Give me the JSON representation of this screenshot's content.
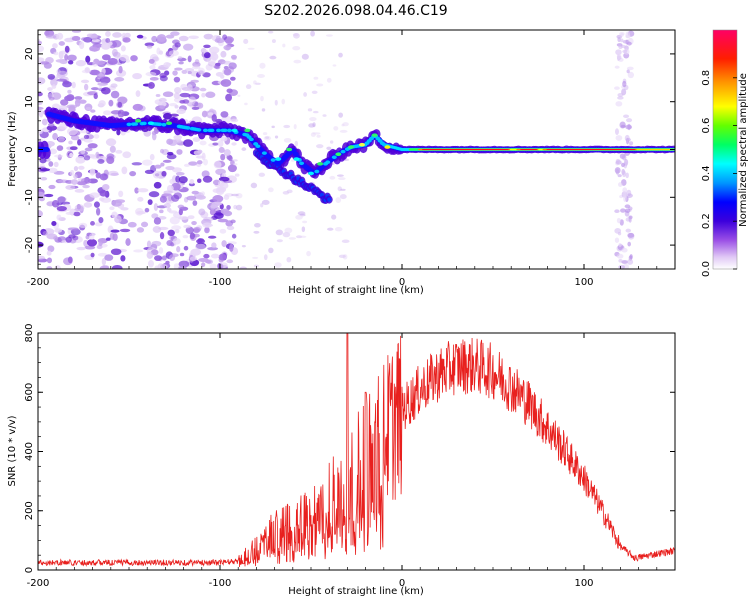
{
  "title": "S202.2026.098.04.46.C19",
  "chart_data": [
    {
      "type": "heatmap",
      "xlabel": "Height of straight line (km)",
      "ylabel": "Frequency (Hz)",
      "xlim": [
        -200,
        150
      ],
      "ylim": [
        -25,
        25
      ],
      "xticks": [
        -200,
        -100,
        0,
        100
      ],
      "yticks": [
        -20,
        -10,
        0,
        10,
        20
      ],
      "colorbar": {
        "label": "Normalized spectral amplitude",
        "range": [
          0,
          1
        ],
        "ticks": [
          0.0,
          0.2,
          0.4,
          0.6,
          0.8
        ],
        "colors": [
          "#ffffff",
          "#b47ae6",
          "#5a00e6",
          "#0000ff",
          "#00a0ff",
          "#00ffff",
          "#00ff00",
          "#ffff00",
          "#ff8000",
          "#ff0000",
          "#ff0080"
        ]
      },
      "ridge": [
        [
          -195,
          7.5
        ],
        [
          -180,
          6
        ],
        [
          -160,
          5
        ],
        [
          -140,
          5.5
        ],
        [
          -125,
          5
        ],
        [
          -110,
          4
        ],
        [
          -95,
          4
        ],
        [
          -85,
          3
        ],
        [
          -75,
          -1
        ],
        [
          -68,
          -3
        ],
        [
          -60,
          0
        ],
        [
          -55,
          -3
        ],
        [
          -48,
          -5
        ],
        [
          -42,
          -3
        ],
        [
          -35,
          -1
        ],
        [
          -28,
          0.5
        ],
        [
          -20,
          1
        ],
        [
          -15,
          3
        ],
        [
          -10,
          1
        ],
        [
          0,
          0
        ],
        [
          30,
          0
        ],
        [
          60,
          0
        ],
        [
          100,
          0
        ],
        [
          150,
          0
        ]
      ]
    },
    {
      "type": "line",
      "xlabel": "Height of straight line (km)",
      "ylabel": "SNR (10 * v/v)",
      "xlim": [
        -200,
        150
      ],
      "ylim": [
        0,
        800
      ],
      "xticks": [
        -200,
        -100,
        0,
        100
      ],
      "yticks": [
        0,
        200,
        400,
        600,
        800
      ],
      "color": "#e8201e",
      "envelope": [
        [
          -200,
          25
        ],
        [
          -150,
          25
        ],
        [
          -100,
          25
        ],
        [
          -90,
          30
        ],
        [
          -80,
          80
        ],
        [
          -70,
          130
        ],
        [
          -60,
          150
        ],
        [
          -50,
          190
        ],
        [
          -40,
          250
        ],
        [
          -30,
          300
        ],
        [
          -20,
          380
        ],
        [
          -10,
          460
        ],
        [
          0,
          540
        ],
        [
          10,
          610
        ],
        [
          20,
          660
        ],
        [
          30,
          690
        ],
        [
          40,
          690
        ],
        [
          50,
          670
        ],
        [
          60,
          620
        ],
        [
          70,
          560
        ],
        [
          80,
          480
        ],
        [
          90,
          400
        ],
        [
          100,
          310
        ],
        [
          110,
          200
        ],
        [
          120,
          80
        ],
        [
          128,
          40
        ],
        [
          140,
          55
        ],
        [
          150,
          65
        ]
      ]
    }
  ]
}
